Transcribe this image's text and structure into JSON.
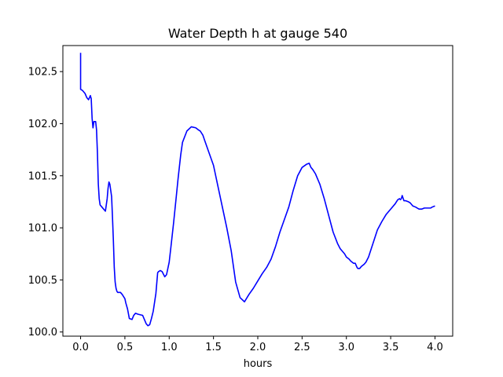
{
  "chart_data": {
    "type": "line",
    "title": "Water Depth h at gauge 540",
    "xlabel": "hours",
    "ylabel": "",
    "xlim": [
      -0.2,
      4.2
    ],
    "ylim": [
      99.96,
      102.75
    ],
    "xticks": [
      0.0,
      0.5,
      1.0,
      1.5,
      2.0,
      2.5,
      3.0,
      3.5,
      4.0
    ],
    "xtick_labels": [
      "0.0",
      "0.5",
      "1.0",
      "1.5",
      "2.0",
      "2.5",
      "3.0",
      "3.5",
      "4.0"
    ],
    "yticks": [
      100.0,
      100.5,
      101.0,
      101.5,
      102.0,
      102.5
    ],
    "ytick_labels": [
      "100.0",
      "100.5",
      "101.0",
      "101.5",
      "102.0",
      "102.5"
    ],
    "grid": false,
    "series": [
      {
        "color": "#0000ff",
        "x": [
          0.0,
          0.0,
          0.02,
          0.05,
          0.07,
          0.08,
          0.09,
          0.1,
          0.11,
          0.12,
          0.13,
          0.14,
          0.15,
          0.17,
          0.18,
          0.19,
          0.2,
          0.21,
          0.22,
          0.24,
          0.26,
          0.28,
          0.3,
          0.31,
          0.32,
          0.33,
          0.35,
          0.36,
          0.37,
          0.38,
          0.39,
          0.4,
          0.41,
          0.42,
          0.43,
          0.45,
          0.47,
          0.5,
          0.51,
          0.53,
          0.55,
          0.58,
          0.6,
          0.62,
          0.65,
          0.7,
          0.74,
          0.76,
          0.78,
          0.8,
          0.82,
          0.85,
          0.87,
          0.88,
          0.9,
          0.92,
          0.95,
          0.97,
          1.0,
          1.02,
          1.05,
          1.08,
          1.1,
          1.13,
          1.15,
          1.2,
          1.25,
          1.3,
          1.33,
          1.35,
          1.38,
          1.4,
          1.45,
          1.5,
          1.55,
          1.6,
          1.65,
          1.7,
          1.75,
          1.8,
          1.85,
          1.9,
          1.95,
          2.0,
          2.05,
          2.1,
          2.15,
          2.2,
          2.25,
          2.3,
          2.35,
          2.4,
          2.45,
          2.5,
          2.55,
          2.58,
          2.6,
          2.62,
          2.65,
          2.7,
          2.75,
          2.8,
          2.85,
          2.9,
          2.93,
          2.95,
          2.98,
          3.0,
          3.03,
          3.05,
          3.08,
          3.1,
          3.12,
          3.13,
          3.14,
          3.15,
          3.17,
          3.2,
          3.22,
          3.25,
          3.3,
          3.35,
          3.4,
          3.45,
          3.5,
          3.55,
          3.58,
          3.6,
          3.61,
          3.62,
          3.63,
          3.65,
          3.67,
          3.7,
          3.72,
          3.75,
          3.78,
          3.8,
          3.82,
          3.85,
          3.88,
          3.9,
          3.93,
          3.95,
          3.97,
          4.0
        ],
        "y": [
          102.68,
          102.33,
          102.32,
          102.29,
          102.25,
          102.24,
          102.23,
          102.25,
          102.27,
          102.24,
          102.05,
          101.96,
          102.02,
          102.02,
          101.94,
          101.72,
          101.42,
          101.28,
          101.22,
          101.2,
          101.18,
          101.16,
          101.28,
          101.38,
          101.44,
          101.42,
          101.3,
          101.1,
          100.88,
          100.62,
          100.48,
          100.42,
          100.39,
          100.38,
          100.38,
          100.38,
          100.36,
          100.32,
          100.28,
          100.22,
          100.13,
          100.12,
          100.16,
          100.18,
          100.17,
          100.16,
          100.08,
          100.06,
          100.07,
          100.13,
          100.2,
          100.37,
          100.57,
          100.58,
          100.59,
          100.58,
          100.53,
          100.55,
          100.67,
          100.82,
          101.05,
          101.3,
          101.47,
          101.7,
          101.82,
          101.93,
          101.97,
          101.96,
          101.94,
          101.93,
          101.89,
          101.84,
          101.72,
          101.6,
          101.4,
          101.2,
          101.0,
          100.78,
          100.48,
          100.33,
          100.29,
          100.36,
          100.42,
          100.49,
          100.56,
          100.62,
          100.7,
          100.82,
          100.96,
          101.08,
          101.2,
          101.36,
          101.5,
          101.58,
          101.61,
          101.62,
          101.58,
          101.56,
          101.52,
          101.42,
          101.28,
          101.12,
          100.96,
          100.85,
          100.8,
          100.78,
          100.75,
          100.72,
          100.7,
          100.68,
          100.66,
          100.66,
          100.62,
          100.61,
          100.61,
          100.61,
          100.63,
          100.65,
          100.67,
          100.72,
          100.85,
          100.98,
          101.06,
          101.13,
          101.18,
          101.23,
          101.27,
          101.28,
          101.27,
          101.28,
          101.31,
          101.26,
          101.26,
          101.25,
          101.24,
          101.21,
          101.2,
          101.19,
          101.18,
          101.18,
          101.19,
          101.19,
          101.19,
          101.19,
          101.2,
          101.21
        ]
      }
    ]
  }
}
